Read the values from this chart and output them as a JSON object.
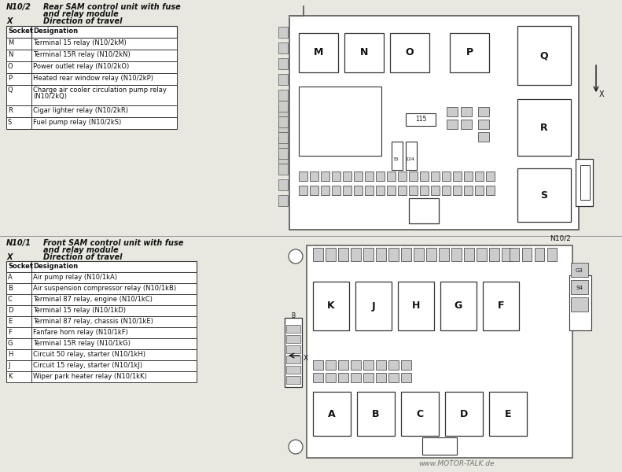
{
  "bg_color": "#e8e8e0",
  "title1_label": "N10/2",
  "title1_desc1": "Rear SAM control unit with fuse",
  "title1_desc2": "and relay module",
  "title1_x_label": "X",
  "title1_x_desc": "Direction of travel",
  "table1_headers": [
    "Socket",
    "Designation"
  ],
  "table1_rows": [
    [
      "M",
      "Terminal 15 relay (N10/2kM)"
    ],
    [
      "N",
      "Terminal 15R relay (N10/2kN)"
    ],
    [
      "O",
      "Power outlet relay (N10/2kO)"
    ],
    [
      "P",
      "Heated rear window relay (N10/2kP)"
    ],
    [
      "Q",
      "Charge air cooler circulation pump relay\n(N10/2kQ)"
    ],
    [
      "R",
      "Cigar lighter relay (N10/2kR)"
    ],
    [
      "S",
      "Fuel pump relay (N10/2kS)"
    ]
  ],
  "title2_label": "N10/1",
  "title2_desc1": "Front SAM control unit with fuse",
  "title2_desc2": "and relay module",
  "title2_x_label": "X",
  "title2_x_desc": "Direction of travel",
  "table2_headers": [
    "Socket",
    "Designation"
  ],
  "table2_rows": [
    [
      "A",
      "Air pump relay (N10/1kA)"
    ],
    [
      "B",
      "Air suspension compressor relay (N10/1kB)"
    ],
    [
      "C",
      "Terminal 87 relay, engine (N10/1kC)"
    ],
    [
      "D",
      "Terminal 15 relay (N10/1kD)"
    ],
    [
      "E",
      "Terminal 87 relay, chassis (N10/1kE)"
    ],
    [
      "F",
      "Fanfare horn relay (N10/1kF)"
    ],
    [
      "G",
      "Terminal 15R relay (N10/1kG)"
    ],
    [
      "H",
      "Circuit 50 relay, starter (N10/1kH)"
    ],
    [
      "J",
      "Circuit 15 relay, starter (N10/1kJ)"
    ],
    [
      "K",
      "Wiper park heater relay (N10/1kK)"
    ]
  ],
  "watermark": "www.MOTOR-TALK.de",
  "line_color": "#333333",
  "text_color": "#111111",
  "fuse_color": "#cccccc",
  "relay_color": "#ffffff"
}
